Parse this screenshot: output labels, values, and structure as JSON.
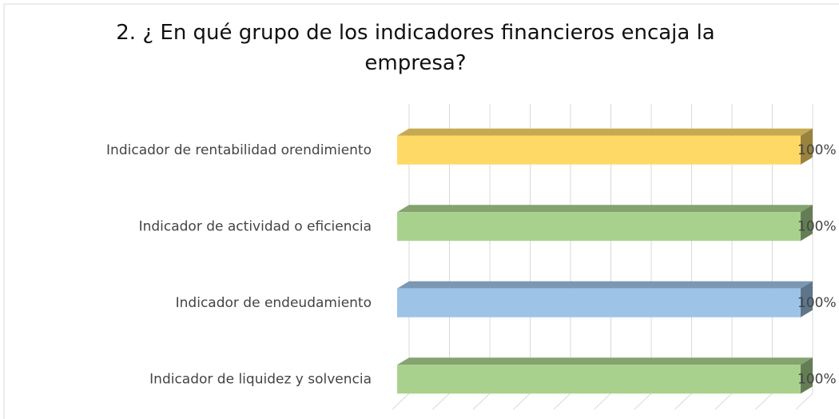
{
  "chart_data": {
    "type": "bar3d",
    "orientation": "horizontal",
    "title": "2. ¿ En qué grupo de los indicadores financieros encaja la empresa?",
    "categories": [
      "Indicador de rentabilidad orendimiento",
      "Indicador de actividad o eficiencia",
      "Indicador de endeudamiento",
      "Indicador de liquidez y solvencia"
    ],
    "values": [
      100,
      100,
      100,
      100
    ],
    "value_labels": [
      "100%",
      "100%",
      "100%",
      "100%"
    ],
    "colors": [
      "#FFD966",
      "#A9D18E",
      "#9DC3E6",
      "#A9D18E"
    ],
    "xlim": [
      0,
      100
    ],
    "xticks": [
      0,
      10,
      20,
      30,
      40,
      50,
      60,
      70,
      80,
      90,
      100
    ],
    "grid": true
  }
}
